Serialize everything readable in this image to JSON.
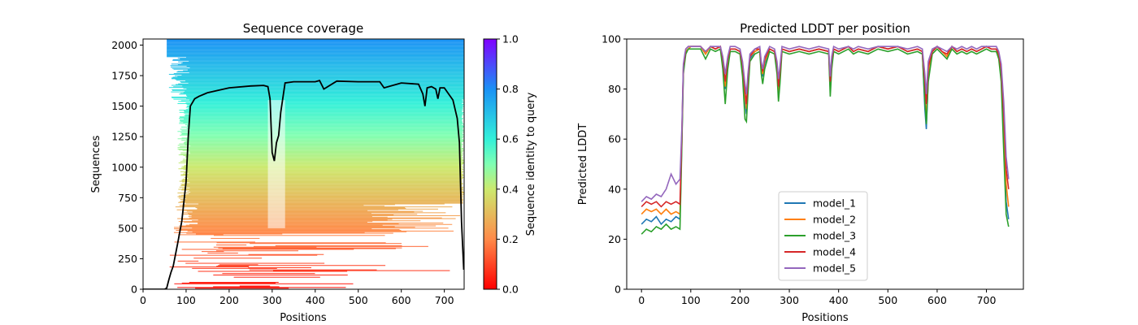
{
  "chart_data": [
    {
      "type": "heatmap",
      "title": "Sequence coverage",
      "xlabel": "Positions",
      "ylabel": "Sequences",
      "xlim": [
        0,
        746
      ],
      "ylim": [
        0,
        2050
      ],
      "xticks": [
        "0",
        "100",
        "200",
        "300",
        "400",
        "500",
        "600",
        "700"
      ],
      "yticks": [
        "0",
        "250",
        "500",
        "750",
        "1000",
        "1250",
        "1500",
        "1750",
        "2000"
      ],
      "colorbar": {
        "label": "Sequence identity to query",
        "range": [
          0,
          1
        ],
        "ticks": [
          "0.0",
          "0.2",
          "0.4",
          "0.6",
          "0.8",
          "1.0"
        ],
        "colormap": "rainbow_r"
      },
      "coverage_line": {
        "color": "#000000",
        "x": [
          0,
          50,
          55,
          60,
          65,
          70,
          80,
          90,
          100,
          105,
          110,
          120,
          130,
          150,
          200,
          250,
          280,
          290,
          295,
          300,
          305,
          310,
          315,
          320,
          330,
          350,
          400,
          410,
          420,
          450,
          500,
          550,
          560,
          600,
          640,
          650,
          655,
          660,
          670,
          680,
          685,
          690,
          700,
          710,
          720,
          730,
          735,
          740,
          745
        ],
        "y": [
          0,
          0,
          10,
          80,
          140,
          190,
          370,
          560,
          880,
          1250,
          1500,
          1560,
          1580,
          1610,
          1650,
          1665,
          1670,
          1660,
          1560,
          1120,
          1050,
          1200,
          1260,
          1450,
          1690,
          1700,
          1700,
          1710,
          1640,
          1705,
          1700,
          1700,
          1650,
          1690,
          1680,
          1600,
          1500,
          1650,
          1660,
          1640,
          1560,
          1650,
          1650,
          1600,
          1550,
          1400,
          1200,
          550,
          160
        ]
      }
    },
    {
      "type": "line",
      "title": "Predicted LDDT per position",
      "xlabel": "Positions",
      "ylabel": "Predicted LDDT",
      "xlim": [
        -30,
        775
      ],
      "ylim": [
        0,
        100
      ],
      "xticks": [
        "0",
        "100",
        "200",
        "300",
        "400",
        "500",
        "600",
        "700"
      ],
      "yticks": [
        "0",
        "20",
        "40",
        "60",
        "80",
        "100"
      ],
      "legend_position": "lower-center",
      "series": [
        {
          "name": "model_1",
          "color": "#1f77b4"
        },
        {
          "name": "model_2",
          "color": "#ff7f0e"
        },
        {
          "name": "model_3",
          "color": "#2ca02c"
        },
        {
          "name": "model_4",
          "color": "#d62728"
        },
        {
          "name": "model_5",
          "color": "#9467bd"
        }
      ],
      "x": [
        0,
        10,
        20,
        30,
        40,
        50,
        60,
        70,
        78,
        82,
        85,
        88,
        90,
        95,
        100,
        110,
        120,
        130,
        140,
        150,
        160,
        165,
        170,
        175,
        180,
        190,
        200,
        205,
        210,
        213,
        216,
        220,
        230,
        240,
        243,
        246,
        250,
        260,
        270,
        275,
        278,
        281,
        285,
        300,
        320,
        340,
        360,
        380,
        383,
        386,
        390,
        400,
        420,
        430,
        440,
        460,
        480,
        500,
        520,
        540,
        560,
        570,
        575,
        578,
        582,
        590,
        600,
        610,
        620,
        630,
        640,
        650,
        660,
        670,
        680,
        690,
        700,
        710,
        720,
        725,
        730,
        735,
        740,
        745
      ],
      "series_values": {
        "model_1": [
          26,
          28,
          27,
          29,
          26,
          28,
          27,
          29,
          28,
          60,
          87,
          92,
          95,
          96,
          97,
          97,
          97,
          94,
          97,
          96,
          97,
          90,
          80,
          90,
          96,
          96,
          95,
          88,
          75,
          70,
          80,
          92,
          95,
          96,
          88,
          85,
          90,
          96,
          95,
          88,
          78,
          85,
          96,
          95,
          96,
          95,
          96,
          95,
          80,
          90,
          96,
          95,
          97,
          95,
          96,
          95,
          97,
          96,
          97,
          95,
          96,
          95,
          72,
          64,
          85,
          95,
          97,
          95,
          93,
          97,
          95,
          96,
          95,
          96,
          95,
          96,
          97,
          96,
          96,
          93,
          85,
          60,
          35,
          28
        ],
        "model_2": [
          30,
          32,
          31,
          32,
          30,
          32,
          30,
          31,
          30,
          62,
          88,
          93,
          95,
          96,
          97,
          97,
          97,
          94,
          97,
          96,
          97,
          91,
          81,
          91,
          96,
          96,
          95,
          89,
          77,
          72,
          82,
          93,
          95,
          96,
          89,
          86,
          91,
          96,
          95,
          89,
          79,
          86,
          96,
          95,
          96,
          95,
          96,
          95,
          81,
          91,
          96,
          95,
          97,
          95,
          96,
          95,
          97,
          96,
          97,
          95,
          96,
          95,
          78,
          68,
          87,
          95,
          97,
          95,
          93,
          97,
          95,
          96,
          95,
          96,
          95,
          96,
          97,
          96,
          96,
          93,
          86,
          65,
          42,
          33
        ],
        "model_3": [
          22,
          24,
          23,
          25,
          24,
          26,
          24,
          25,
          24,
          58,
          86,
          91,
          94,
          96,
          96,
          96,
          96,
          92,
          96,
          95,
          96,
          88,
          74,
          88,
          95,
          95,
          94,
          85,
          68,
          67,
          78,
          91,
          94,
          95,
          86,
          82,
          88,
          95,
          94,
          86,
          75,
          82,
          95,
          94,
          95,
          94,
          95,
          94,
          77,
          88,
          95,
          94,
          96,
          94,
          95,
          94,
          96,
          95,
          96,
          94,
          95,
          94,
          75,
          66,
          83,
          94,
          96,
          94,
          92,
          96,
          94,
          95,
          94,
          95,
          94,
          95,
          96,
          95,
          95,
          92,
          83,
          55,
          30,
          25
        ],
        "model_4": [
          33,
          35,
          34,
          35,
          33,
          35,
          34,
          35,
          34,
          63,
          89,
          93,
          96,
          97,
          97,
          97,
          97,
          95,
          97,
          96,
          97,
          92,
          83,
          92,
          96,
          96,
          95,
          90,
          79,
          74,
          84,
          93,
          96,
          96,
          90,
          87,
          92,
          96,
          95,
          90,
          81,
          87,
          96,
          95,
          96,
          95,
          96,
          95,
          83,
          92,
          96,
          95,
          97,
          95,
          96,
          95,
          97,
          96,
          97,
          95,
          96,
          95,
          83,
          74,
          89,
          95,
          97,
          95,
          94,
          97,
          95,
          96,
          95,
          96,
          95,
          96,
          97,
          96,
          96,
          94,
          88,
          70,
          48,
          40
        ],
        "model_5": [
          35,
          37,
          36,
          38,
          37,
          40,
          46,
          42,
          44,
          65,
          90,
          94,
          96,
          97,
          97,
          97,
          97,
          95,
          97,
          97,
          97,
          93,
          86,
          93,
          97,
          97,
          96,
          91,
          82,
          78,
          86,
          94,
          96,
          97,
          91,
          88,
          93,
          97,
          96,
          91,
          84,
          89,
          97,
          96,
          97,
          96,
          97,
          96,
          85,
          93,
          97,
          96,
          97,
          96,
          97,
          96,
          97,
          97,
          97,
          96,
          97,
          96,
          86,
          78,
          91,
          96,
          97,
          96,
          95,
          97,
          96,
          97,
          96,
          97,
          96,
          97,
          97,
          97,
          97,
          95,
          90,
          75,
          53,
          44
        ]
      }
    }
  ]
}
